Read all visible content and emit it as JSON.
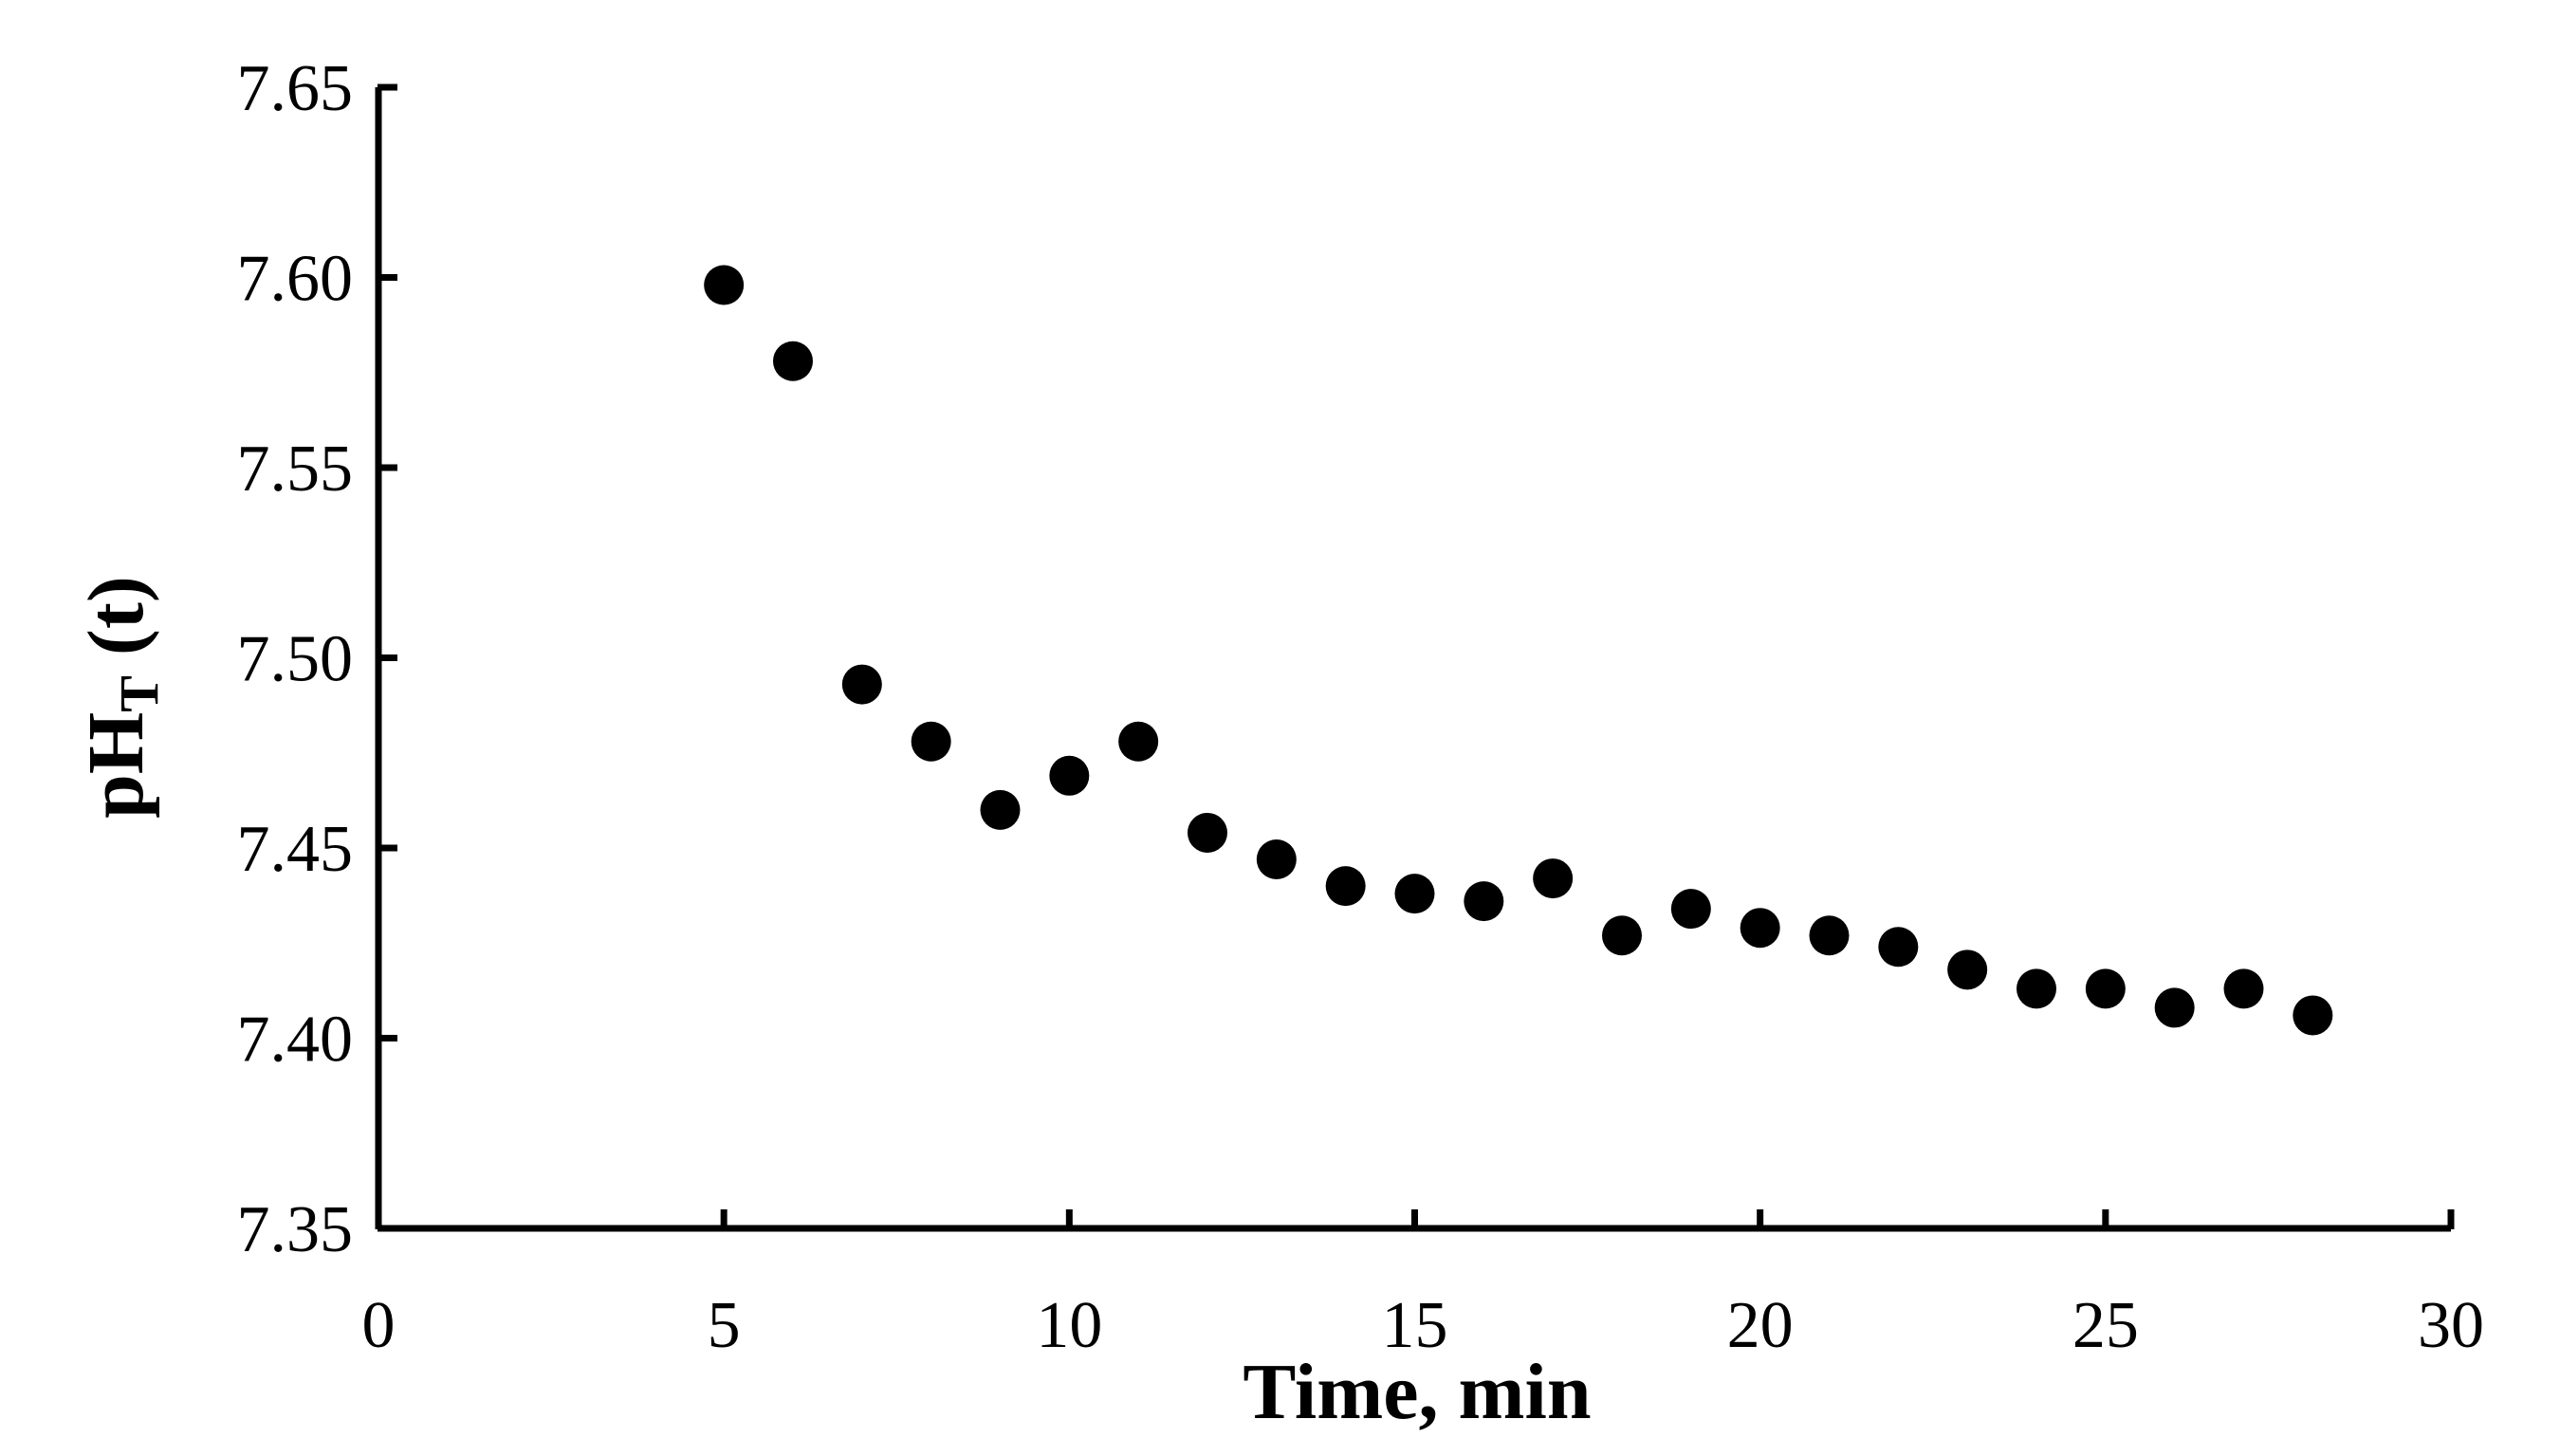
{
  "chart_data": {
    "type": "scatter",
    "title": "",
    "xlabel": "Time, min",
    "ylabel_main": "pH",
    "ylabel_sub": "T",
    "ylabel_tail": " (t)",
    "xlim": [
      0,
      30
    ],
    "ylim": [
      7.35,
      7.65
    ],
    "xticks": [
      "0",
      "5",
      "10",
      "15",
      "20",
      "25",
      "30"
    ],
    "yticks": [
      "7.35",
      "7.40",
      "7.45",
      "7.50",
      "7.55",
      "7.60",
      "7.65"
    ],
    "grid": false,
    "legend": "none",
    "marker_color": "#000000",
    "x": [
      5,
      6,
      7,
      8,
      9,
      10,
      11,
      12,
      13,
      14,
      15,
      16,
      17,
      18,
      19,
      20,
      21,
      22,
      23,
      24,
      25,
      26,
      27,
      28
    ],
    "y": [
      7.598,
      7.578,
      7.493,
      7.478,
      7.46,
      7.469,
      7.478,
      7.454,
      7.447,
      7.44,
      7.438,
      7.436,
      7.442,
      7.427,
      7.434,
      7.429,
      7.427,
      7.424,
      7.418,
      7.413,
      7.413,
      7.408,
      7.413,
      7.406
    ]
  }
}
